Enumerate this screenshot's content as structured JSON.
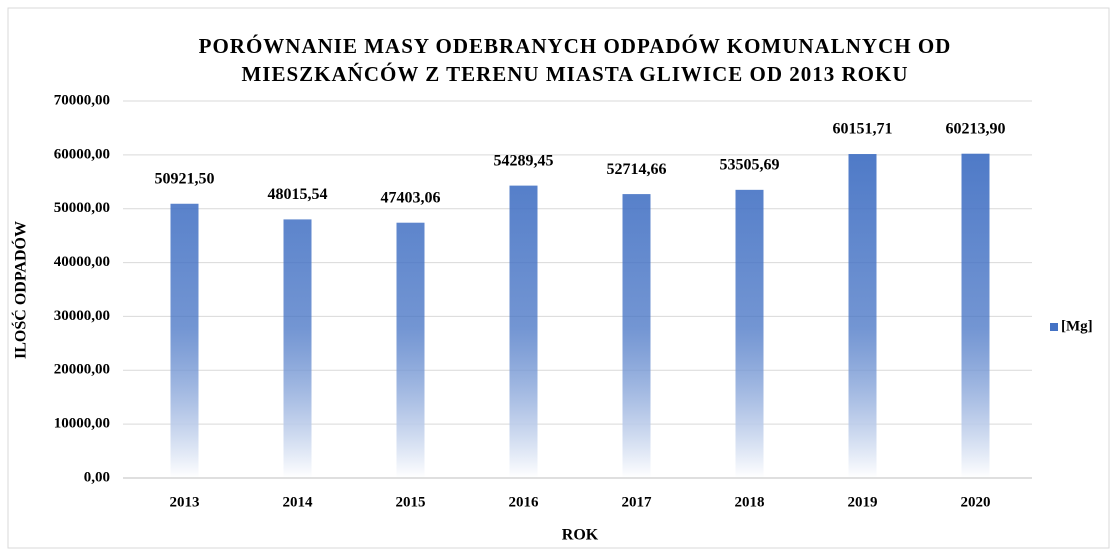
{
  "chart_data": {
    "type": "bar",
    "title": [
      "PORÓWNANIE MASY ODEBRANYCH ODPADÓW KOMUNALNYCH OD",
      "MIESZKAŃCÓW Z TERENU MIASTA GLIWICE OD 2013 ROKU"
    ],
    "x_label": "ROK",
    "y_label": "ILOŚĆ ODPADÓW",
    "categories": [
      "2013",
      "2014",
      "2015",
      "2016",
      "2017",
      "2018",
      "2019",
      "2020"
    ],
    "series": [
      {
        "name": "[Mg]",
        "color": "#4472c4",
        "values": [
          50921.5,
          48015.54,
          47403.06,
          54289.45,
          52714.66,
          53505.69,
          60151.71,
          60213.9
        ],
        "value_labels": [
          "50921,50",
          "48015,54",
          "47403,06",
          "54289,45",
          "52714,66",
          "53505,69",
          "60151,71",
          "60213,90"
        ]
      }
    ],
    "ylim": [
      0,
      70000
    ],
    "yticks": [
      {
        "value": 0,
        "label": "0,00"
      },
      {
        "value": 10000,
        "label": "10000,00"
      },
      {
        "value": 20000,
        "label": "20000,00"
      },
      {
        "value": 30000,
        "label": "30000,00"
      },
      {
        "value": 40000,
        "label": "40000,00"
      },
      {
        "value": 50000,
        "label": "50000,00"
      },
      {
        "value": 60000,
        "label": "60000,00"
      },
      {
        "value": 70000,
        "label": "70000,00"
      }
    ],
    "grid": true,
    "legend": "right"
  }
}
